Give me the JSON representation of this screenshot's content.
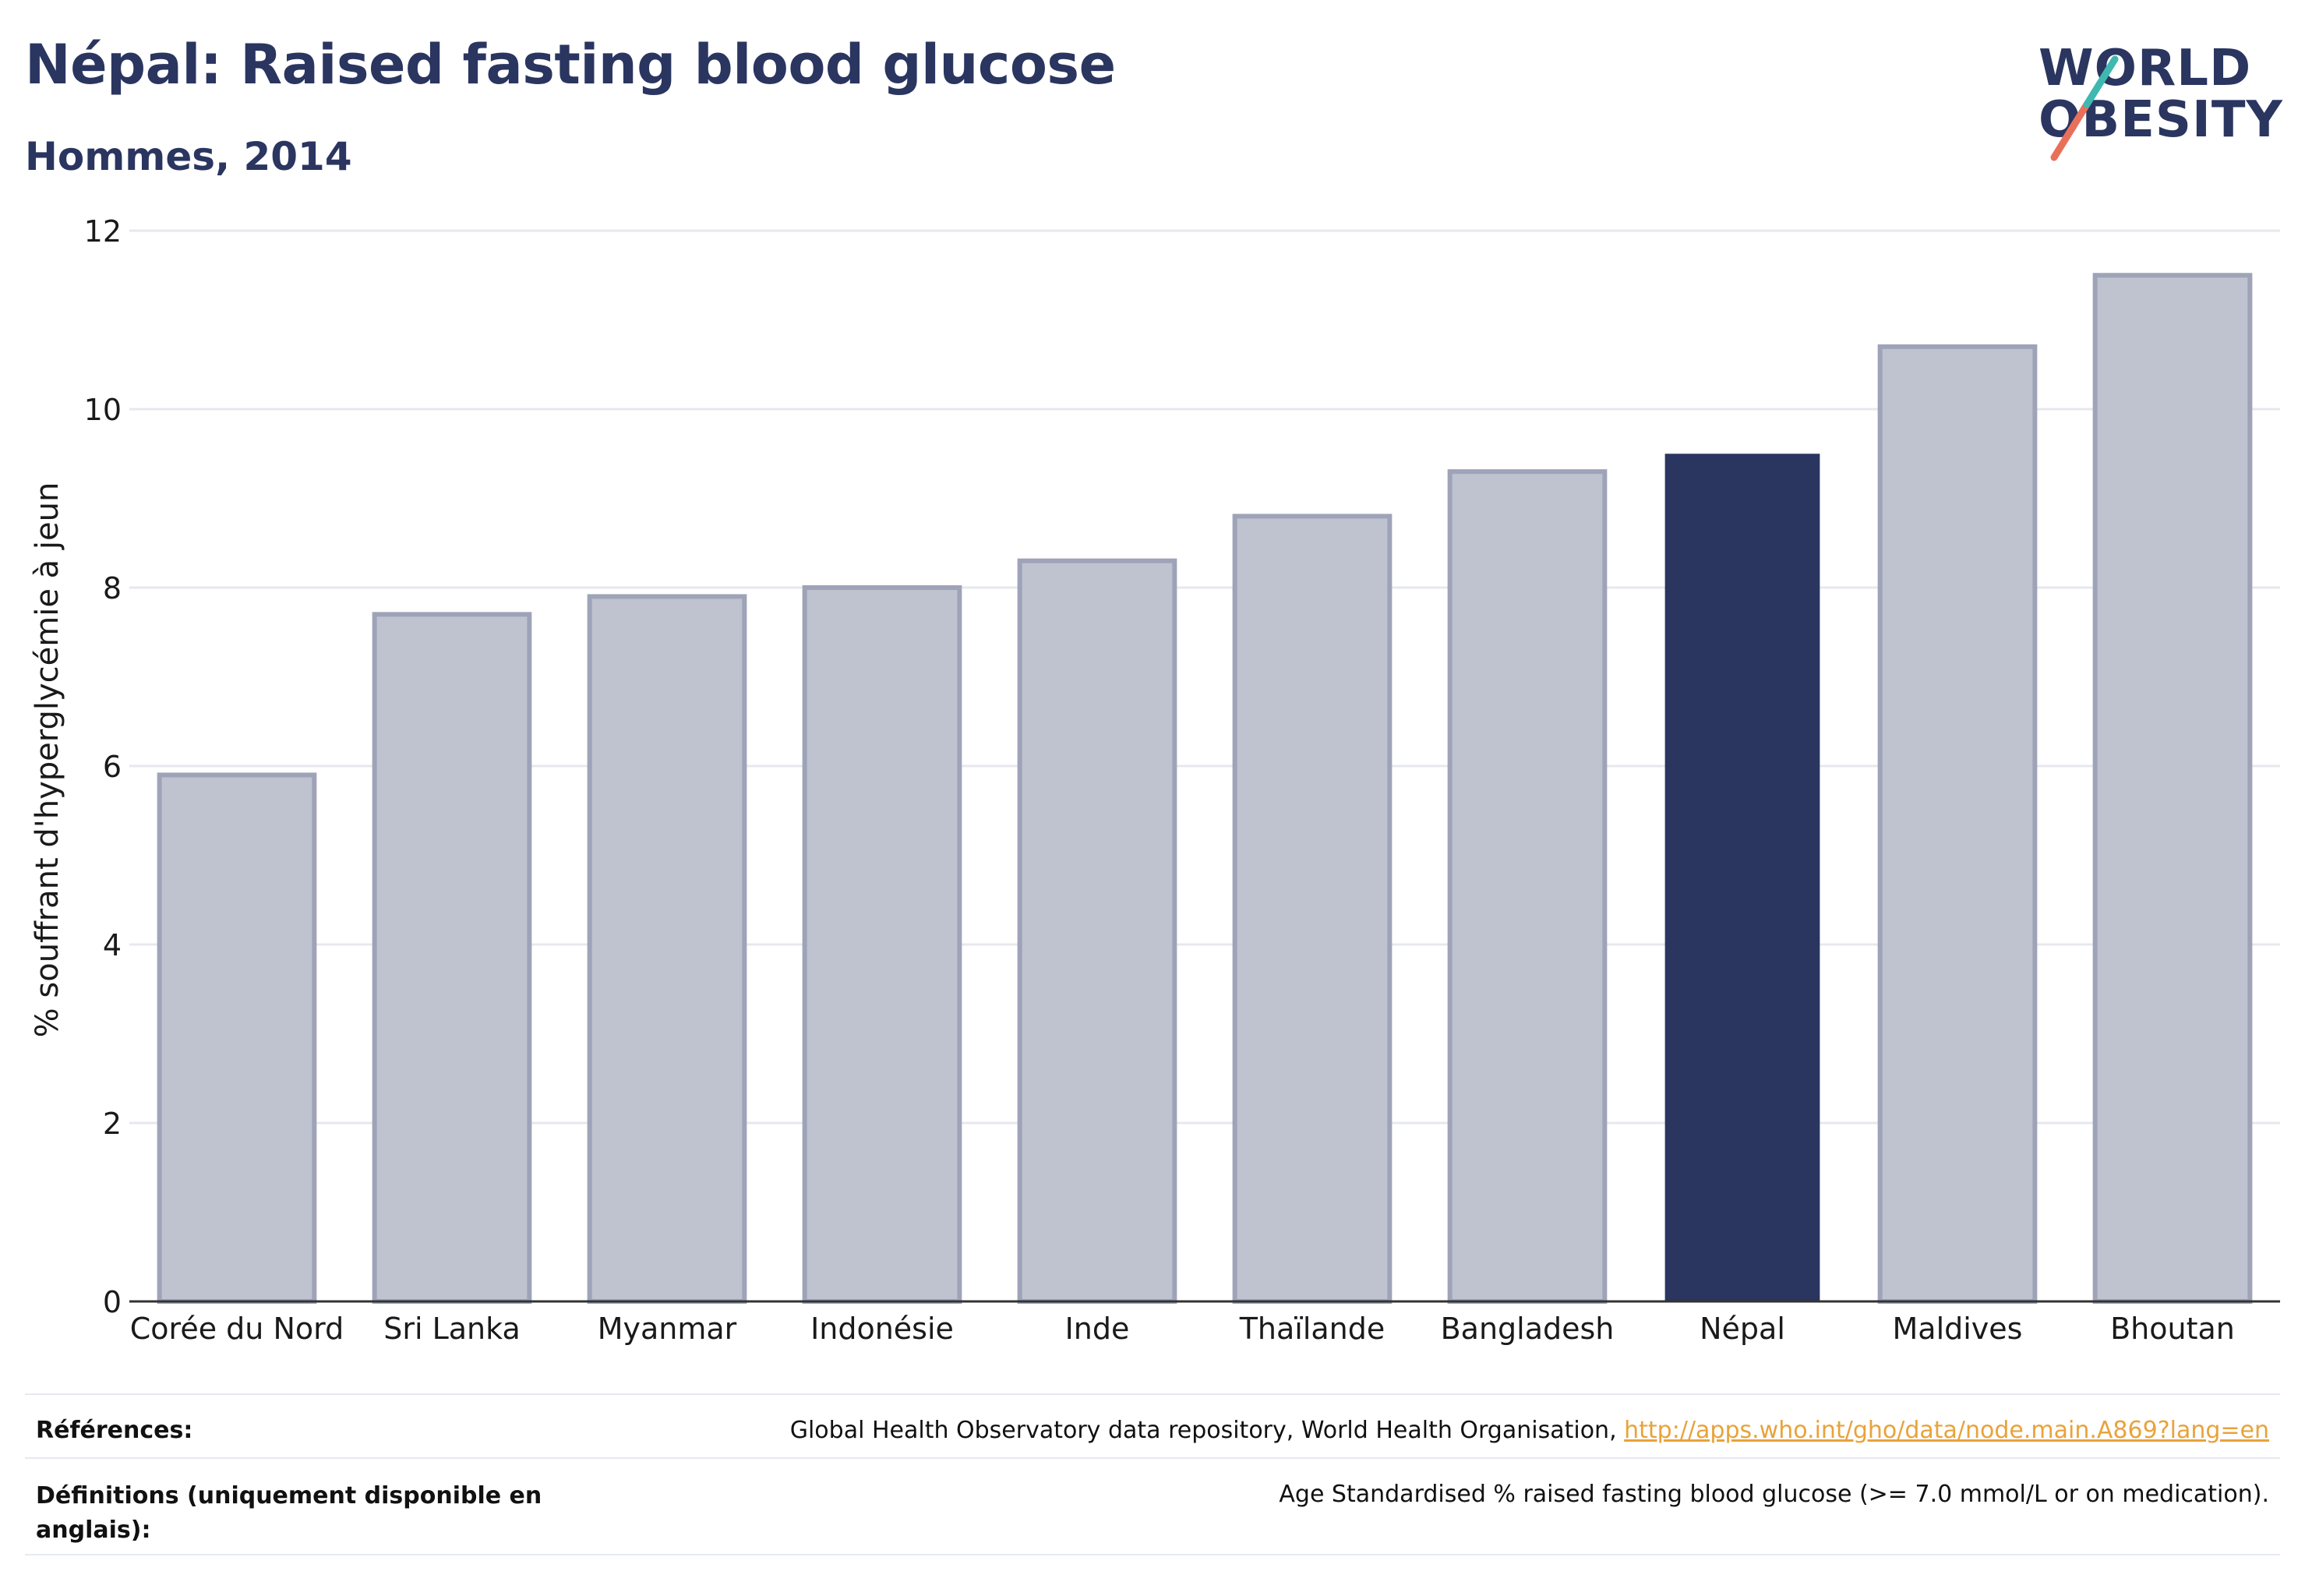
{
  "header": {
    "title": "Népal: Raised fasting blood glucose",
    "subtitle": "Hommes, 2014"
  },
  "logo": {
    "line1": "WORLD",
    "line2": "OBESITY",
    "accent_colors": [
      "#e8705a",
      "#3fb8b0"
    ]
  },
  "chart_data": {
    "type": "bar",
    "categories": [
      "Corée du Nord",
      "Sri Lanka",
      "Myanmar",
      "Indonésie",
      "Inde",
      "Thaïlande",
      "Bangladesh",
      "Népal",
      "Maldives",
      "Bhoutan"
    ],
    "values": [
      5.9,
      7.7,
      7.9,
      8.0,
      8.3,
      8.8,
      9.3,
      9.5,
      10.7,
      11.5
    ],
    "highlight": "Népal",
    "ylabel": "% souffrant d'hyperglycémie à jeun",
    "xlabel": "",
    "ylim": [
      0,
      12
    ],
    "yticks": [
      0,
      2,
      4,
      6,
      8,
      10,
      12
    ],
    "grid": true,
    "colors": {
      "bar": "#bfc2cf",
      "bar_border": "#9ea3b8",
      "highlight": "#2a3560",
      "grid": "#e6e8ee"
    }
  },
  "footer": {
    "references_label": "Références:",
    "references_text": "Global Health Observatory data repository, World Health Organisation, ",
    "references_link": "http://apps.who.int/gho/data/node.main.A869?lang=en",
    "definitions_label": "Définitions (uniquement disponible en anglais):",
    "definitions_text": "Age Standardised % raised fasting blood glucose (>= 7.0 mmol/L or on medication)."
  }
}
